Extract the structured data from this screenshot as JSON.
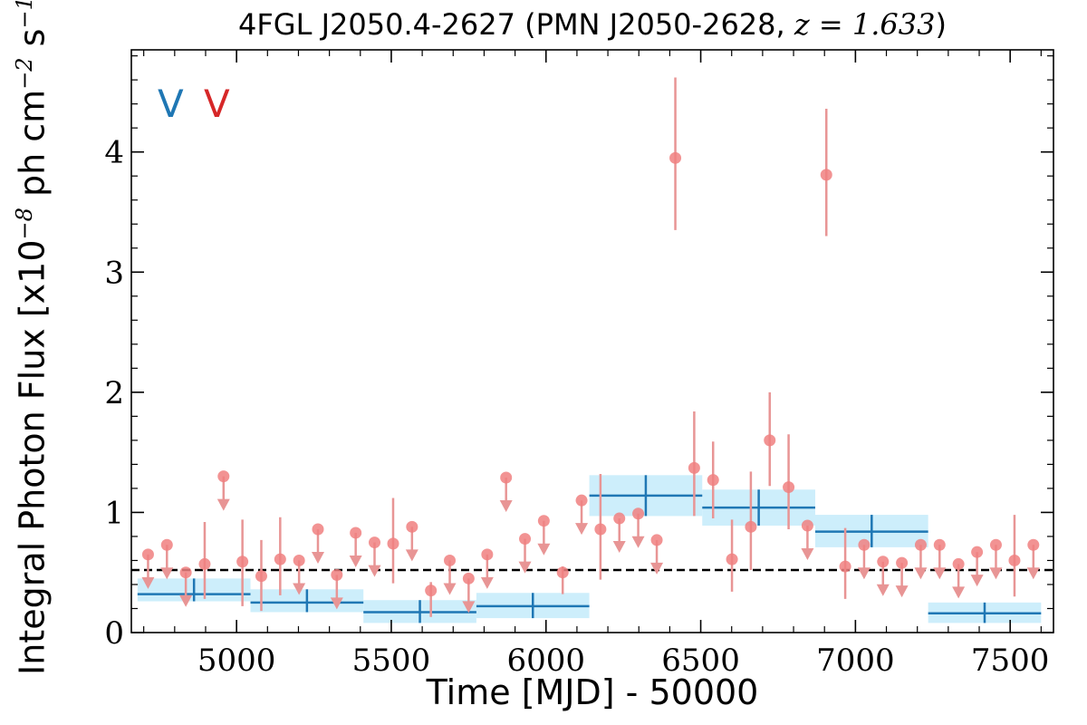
{
  "chart_data": {
    "type": "scatter",
    "title_prefix": "4FGL J2050.4-2627 (PMN J2050-2628, ",
    "title_math": "z = 1.633",
    "title_suffix": ")",
    "xlabel": "Time [MJD] - 50000",
    "ylabel_prefix": "Integral Photon Flux [x10",
    "ylabel_exp1": "−8",
    "ylabel_mid": " ph cm",
    "ylabel_exp2": "−2",
    "ylabel_mid2": " s",
    "ylabel_exp3": "−1",
    "ylabel_suffix": "]",
    "xlim": [
      4660,
      7640
    ],
    "ylim": [
      0,
      4.85
    ],
    "xticks": [
      5000,
      5500,
      6000,
      6500,
      7000,
      7500
    ],
    "xtick_labels": [
      "5000",
      "5500",
      "6000",
      "6500",
      "7000",
      "7500"
    ],
    "yticks": [
      0,
      1,
      2,
      3,
      4
    ],
    "ytick_labels": [
      "0",
      "1",
      "2",
      "3",
      "4"
    ],
    "markers": [
      {
        "label": "V",
        "color": "#1f77b4"
      },
      {
        "label": "V",
        "color": "#d62728"
      }
    ],
    "reference_line": {
      "y": 0.52,
      "style": "dashed",
      "color": "#000000"
    },
    "colors": {
      "bins": "#1f77b4",
      "bin_band": "#cdeefb",
      "points": "#f08080",
      "upper_limits": "#e89595"
    },
    "yearly_bins": [
      {
        "x0": 4680,
        "x1": 5045,
        "y": 0.32,
        "lo": 0.26,
        "hi": 0.45
      },
      {
        "x0": 5045,
        "x1": 5410,
        "y": 0.25,
        "lo": 0.17,
        "hi": 0.36
      },
      {
        "x0": 5410,
        "x1": 5775,
        "y": 0.17,
        "lo": 0.08,
        "hi": 0.27
      },
      {
        "x0": 5775,
        "x1": 6140,
        "y": 0.22,
        "lo": 0.12,
        "hi": 0.33
      },
      {
        "x0": 6140,
        "x1": 6505,
        "y": 1.14,
        "lo": 0.97,
        "hi": 1.31
      },
      {
        "x0": 6505,
        "x1": 6870,
        "y": 1.04,
        "lo": 0.89,
        "hi": 1.19
      },
      {
        "x0": 6870,
        "x1": 7235,
        "y": 0.84,
        "lo": 0.71,
        "hi": 0.98
      },
      {
        "x0": 7235,
        "x1": 7600,
        "y": 0.16,
        "lo": 0.08,
        "hi": 0.25
      }
    ],
    "points": [
      {
        "x": 4897,
        "y": 0.57,
        "lo": 0.28,
        "hi": 0.92
      },
      {
        "x": 5019,
        "y": 0.59,
        "lo": 0.22,
        "hi": 0.94
      },
      {
        "x": 5080,
        "y": 0.47,
        "lo": 0.18,
        "hi": 0.77
      },
      {
        "x": 5141,
        "y": 0.61,
        "lo": 0.31,
        "hi": 0.96
      },
      {
        "x": 5506,
        "y": 0.74,
        "lo": 0.41,
        "hi": 1.12
      },
      {
        "x": 5628,
        "y": 0.35,
        "lo": 0.13,
        "hi": 0.42
      },
      {
        "x": 6054,
        "y": 0.5,
        "lo": 0.32,
        "hi": 0.55
      },
      {
        "x": 6176,
        "y": 0.86,
        "lo": 0.44,
        "hi": 1.32
      },
      {
        "x": 6418,
        "y": 3.95,
        "lo": 3.35,
        "hi": 4.62
      },
      {
        "x": 6479,
        "y": 1.37,
        "lo": 0.97,
        "hi": 1.84
      },
      {
        "x": 6540,
        "y": 1.27,
        "lo": 0.95,
        "hi": 1.59
      },
      {
        "x": 6601,
        "y": 0.61,
        "lo": 0.34,
        "hi": 0.94
      },
      {
        "x": 6662,
        "y": 0.88,
        "lo": 0.52,
        "hi": 1.34
      },
      {
        "x": 6723,
        "y": 1.6,
        "lo": 1.22,
        "hi": 2.0
      },
      {
        "x": 6784,
        "y": 1.21,
        "lo": 0.86,
        "hi": 1.65
      },
      {
        "x": 6906,
        "y": 3.81,
        "lo": 3.3,
        "hi": 4.36
      },
      {
        "x": 6967,
        "y": 0.55,
        "lo": 0.28,
        "hi": 0.87
      },
      {
        "x": 7514,
        "y": 0.6,
        "lo": 0.3,
        "hi": 0.98
      }
    ],
    "upper_limits": [
      {
        "x": 4714,
        "y": 0.65
      },
      {
        "x": 4775,
        "y": 0.73
      },
      {
        "x": 4836,
        "y": 0.5
      },
      {
        "x": 4958,
        "y": 1.3
      },
      {
        "x": 5202,
        "y": 0.6
      },
      {
        "x": 5263,
        "y": 0.86
      },
      {
        "x": 5324,
        "y": 0.48
      },
      {
        "x": 5385,
        "y": 0.83
      },
      {
        "x": 5446,
        "y": 0.75
      },
      {
        "x": 5567,
        "y": 0.88
      },
      {
        "x": 5689,
        "y": 0.6
      },
      {
        "x": 5750,
        "y": 0.45
      },
      {
        "x": 5810,
        "y": 0.65
      },
      {
        "x": 5871,
        "y": 1.29
      },
      {
        "x": 5932,
        "y": 0.78
      },
      {
        "x": 5993,
        "y": 0.93
      },
      {
        "x": 6115,
        "y": 1.1
      },
      {
        "x": 6237,
        "y": 0.95
      },
      {
        "x": 6298,
        "y": 0.99
      },
      {
        "x": 6358,
        "y": 0.77
      },
      {
        "x": 6845,
        "y": 0.89
      },
      {
        "x": 7028,
        "y": 0.73
      },
      {
        "x": 7089,
        "y": 0.59
      },
      {
        "x": 7150,
        "y": 0.58
      },
      {
        "x": 7211,
        "y": 0.73
      },
      {
        "x": 7272,
        "y": 0.73
      },
      {
        "x": 7333,
        "y": 0.57
      },
      {
        "x": 7393,
        "y": 0.67
      },
      {
        "x": 7454,
        "y": 0.73
      },
      {
        "x": 7575,
        "y": 0.73
      }
    ]
  }
}
